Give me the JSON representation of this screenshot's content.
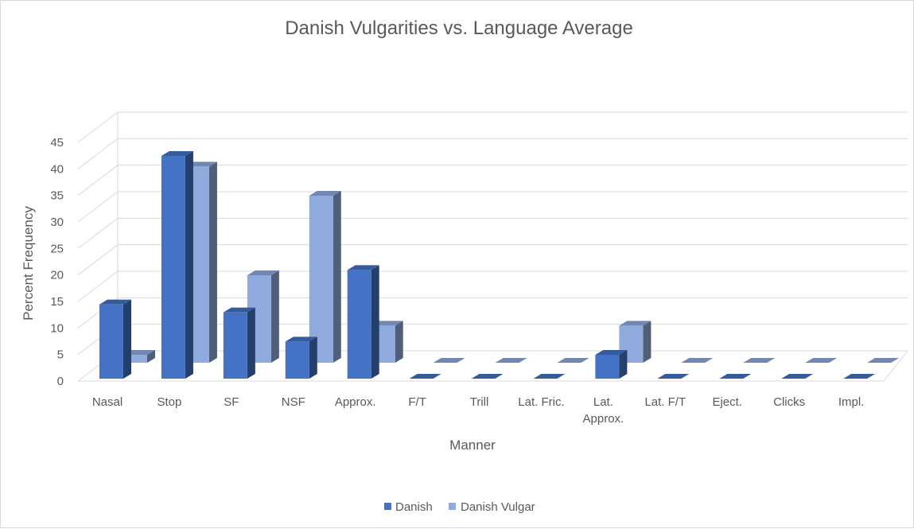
{
  "chart_data": {
    "type": "bar",
    "title": "Danish Vulgarities vs. Language Average",
    "xlabel": "Manner",
    "ylabel": "Percent Frequency",
    "ylim": [
      0,
      45
    ],
    "yticks": [
      0,
      5,
      10,
      15,
      20,
      25,
      30,
      35,
      40,
      45
    ],
    "categories": [
      "Nasal",
      "Stop",
      "SF",
      "NSF",
      "Approx.",
      "F/T",
      "Trill",
      "Lat. Fric.",
      "Lat. Approx.",
      "Lat. F/T",
      "Eject.",
      "Clicks",
      "Impl."
    ],
    "series": [
      {
        "name": "Danish",
        "color": "#4472c4",
        "values": [
          14,
          42,
          12.5,
          7,
          20.5,
          0,
          0,
          0,
          4.5,
          0,
          0,
          0,
          0
        ]
      },
      {
        "name": "Danish Vulgar",
        "color": "#8faadc",
        "values": [
          1.5,
          37,
          16.5,
          31.5,
          7,
          0,
          0,
          0,
          7,
          0,
          0,
          0,
          0
        ]
      }
    ],
    "grid": true,
    "legend": "bottom"
  }
}
